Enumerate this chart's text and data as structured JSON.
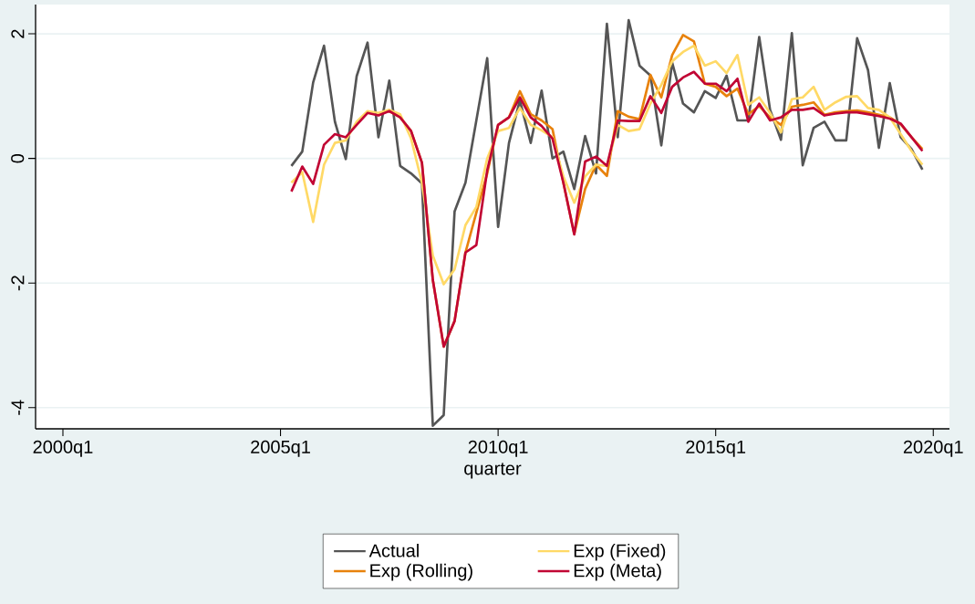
{
  "chart_data": {
    "type": "line",
    "xlabel": "quarter",
    "xlim": [
      "1999-05-15",
      "2020-05-15"
    ],
    "ylim": [
      -4.34,
      2.47
    ],
    "xticks": [
      {
        "value": "2000-01",
        "label": "2000q1"
      },
      {
        "value": "2005-01",
        "label": "2005q1"
      },
      {
        "value": "2010-01",
        "label": "2010q1"
      },
      {
        "value": "2015-01",
        "label": "2015q1"
      },
      {
        "value": "2020-01",
        "label": "2020q1"
      }
    ],
    "yticks": [
      -4,
      -2,
      0,
      2
    ],
    "grid": "y",
    "legend": "bottom",
    "marker": "none",
    "line_style": "solid",
    "series": [
      {
        "name": "Actual",
        "color": "#555555",
        "x": [
          "2005-04",
          "2005-07",
          "2005-10",
          "2006-01",
          "2006-04",
          "2006-07",
          "2006-10",
          "2007-01",
          "2007-04",
          "2007-07",
          "2007-10",
          "2008-01",
          "2008-04",
          "2008-07",
          "2008-10",
          "2009-01",
          "2009-04",
          "2009-07",
          "2009-10",
          "2010-01",
          "2010-04",
          "2010-07",
          "2010-10",
          "2011-01",
          "2011-04",
          "2011-07",
          "2011-10",
          "2012-01",
          "2012-04",
          "2012-07",
          "2012-10",
          "2013-01",
          "2013-04",
          "2013-07",
          "2013-10",
          "2014-01",
          "2014-04",
          "2014-07",
          "2014-10",
          "2015-01",
          "2015-04",
          "2015-07",
          "2015-10",
          "2016-01",
          "2016-04",
          "2016-07",
          "2016-10",
          "2017-01",
          "2017-04",
          "2017-07",
          "2017-10",
          "2018-01",
          "2018-04",
          "2018-07",
          "2018-10",
          "2019-01",
          "2019-04",
          "2019-07",
          "2019-10"
        ],
        "values": [
          -0.12,
          0.11,
          1.22,
          1.81,
          0.59,
          -0.01,
          1.32,
          1.86,
          0.34,
          1.25,
          -0.12,
          -0.24,
          -0.4,
          -4.29,
          -4.12,
          -0.85,
          -0.39,
          0.61,
          1.61,
          -1.1,
          0.25,
          0.93,
          0.25,
          1.09,
          0.0,
          0.11,
          -0.49,
          0.36,
          -0.24,
          2.16,
          0.34,
          2.22,
          1.49,
          1.33,
          0.21,
          1.54,
          0.88,
          0.74,
          1.08,
          0.97,
          1.33,
          0.61,
          0.61,
          1.95,
          0.78,
          0.3,
          2.01,
          -0.11,
          0.49,
          0.59,
          0.29,
          0.29,
          1.93,
          1.42,
          0.17,
          1.21,
          0.34,
          0.15,
          -0.18
        ]
      },
      {
        "name": "Exp (Rolling)",
        "color": "#e8820c",
        "x": [
          "2007-07",
          "2007-10",
          "2008-01",
          "2008-04",
          "2008-07",
          "2008-10",
          "2009-01",
          "2009-04",
          "2009-07",
          "2009-10",
          "2010-01",
          "2010-04",
          "2010-07",
          "2010-10",
          "2011-01",
          "2011-04",
          "2011-07",
          "2011-10",
          "2012-01",
          "2012-04",
          "2012-07",
          "2012-10",
          "2013-01",
          "2013-04",
          "2013-07",
          "2013-10",
          "2014-01",
          "2014-04",
          "2014-07",
          "2014-10",
          "2015-01",
          "2015-04",
          "2015-07",
          "2015-10",
          "2016-01",
          "2016-04",
          "2016-07",
          "2016-10",
          "2017-01",
          "2017-04",
          "2017-07",
          "2017-10",
          "2018-01",
          "2018-04",
          "2018-07",
          "2018-10",
          "2019-01",
          "2019-04",
          "2019-07",
          "2019-10"
        ],
        "values": [
          0.76,
          0.66,
          0.44,
          -0.07,
          -1.95,
          -3.02,
          -2.61,
          -1.51,
          -0.87,
          -0.24,
          0.54,
          0.66,
          1.08,
          0.71,
          0.61,
          0.47,
          -0.39,
          -1.21,
          -0.49,
          -0.1,
          -0.28,
          0.76,
          0.67,
          0.63,
          1.34,
          0.98,
          1.66,
          1.98,
          1.88,
          1.2,
          1.15,
          1.0,
          1.12,
          0.71,
          0.84,
          0.66,
          0.54,
          0.83,
          0.86,
          0.9,
          0.7,
          0.74,
          0.76,
          0.77,
          0.74,
          0.7,
          0.66,
          0.55,
          0.34,
          0.15
        ]
      },
      {
        "name": "Exp (Fixed)",
        "color": "#ffd966",
        "x": [
          "2005-04",
          "2005-07",
          "2005-10",
          "2006-01",
          "2006-04",
          "2006-07",
          "2006-10",
          "2007-01",
          "2007-04",
          "2007-07",
          "2007-10",
          "2008-01",
          "2008-04",
          "2008-07",
          "2008-10",
          "2009-01",
          "2009-04",
          "2009-07",
          "2009-10",
          "2010-01",
          "2010-04",
          "2010-07",
          "2010-10",
          "2011-01",
          "2011-04",
          "2011-07",
          "2011-10",
          "2012-01",
          "2012-04",
          "2012-07",
          "2012-10",
          "2013-01",
          "2013-04",
          "2013-07",
          "2013-10",
          "2014-01",
          "2014-04",
          "2014-07",
          "2014-10",
          "2015-01",
          "2015-04",
          "2015-07",
          "2015-10",
          "2016-01",
          "2016-04",
          "2016-07",
          "2016-10",
          "2017-01",
          "2017-04",
          "2017-07",
          "2017-10",
          "2018-01",
          "2018-04",
          "2018-07",
          "2018-10",
          "2019-01",
          "2019-04",
          "2019-07",
          "2019-10"
        ],
        "values": [
          -0.39,
          -0.22,
          -1.02,
          -0.1,
          0.25,
          0.29,
          0.59,
          0.76,
          0.73,
          0.78,
          0.71,
          0.32,
          -0.39,
          -1.56,
          -2.02,
          -1.78,
          -1.07,
          -0.78,
          0.0,
          0.44,
          0.49,
          0.81,
          0.54,
          0.45,
          0.34,
          -0.29,
          -0.71,
          -0.29,
          -0.1,
          -0.12,
          0.54,
          0.44,
          0.47,
          0.88,
          1.18,
          1.56,
          1.71,
          1.81,
          1.49,
          1.56,
          1.37,
          1.66,
          0.86,
          0.98,
          0.73,
          0.42,
          0.95,
          0.98,
          1.15,
          0.78,
          0.9,
          0.99,
          1.0,
          0.81,
          0.78,
          0.66,
          0.39,
          0.12,
          -0.1
        ]
      },
      {
        "name": "Exp (Meta)",
        "color": "#c10534",
        "x": [
          "2005-04",
          "2005-07",
          "2005-10",
          "2006-01",
          "2006-04",
          "2006-07",
          "2006-10",
          "2007-01",
          "2007-04",
          "2007-07",
          "2007-10",
          "2008-01",
          "2008-04",
          "2008-07",
          "2008-10",
          "2009-01",
          "2009-04",
          "2009-07",
          "2009-10",
          "2010-01",
          "2010-04",
          "2010-07",
          "2010-10",
          "2011-01",
          "2011-04",
          "2011-07",
          "2011-10",
          "2012-01",
          "2012-04",
          "2012-07",
          "2012-10",
          "2013-01",
          "2013-04",
          "2013-07",
          "2013-10",
          "2014-01",
          "2014-04",
          "2014-07",
          "2014-10",
          "2015-01",
          "2015-04",
          "2015-07",
          "2015-10",
          "2016-01",
          "2016-04",
          "2016-07",
          "2016-10",
          "2017-01",
          "2017-04",
          "2017-07",
          "2017-10",
          "2018-01",
          "2018-04",
          "2018-07",
          "2018-10",
          "2019-01",
          "2019-04",
          "2019-07",
          "2019-10"
        ],
        "values": [
          -0.53,
          -0.13,
          -0.41,
          0.22,
          0.39,
          0.34,
          0.54,
          0.73,
          0.69,
          0.76,
          0.66,
          0.44,
          -0.07,
          -1.95,
          -3.02,
          -2.61,
          -1.51,
          -1.39,
          -0.19,
          0.54,
          0.66,
          0.98,
          0.66,
          0.52,
          0.32,
          -0.39,
          -1.22,
          -0.05,
          0.03,
          -0.12,
          0.61,
          0.6,
          0.6,
          1.0,
          0.73,
          1.15,
          1.3,
          1.39,
          1.2,
          1.2,
          1.08,
          1.28,
          0.59,
          0.88,
          0.61,
          0.66,
          0.78,
          0.78,
          0.81,
          0.69,
          0.72,
          0.74,
          0.74,
          0.71,
          0.68,
          0.64,
          0.56,
          0.34,
          0.12
        ]
      }
    ]
  }
}
